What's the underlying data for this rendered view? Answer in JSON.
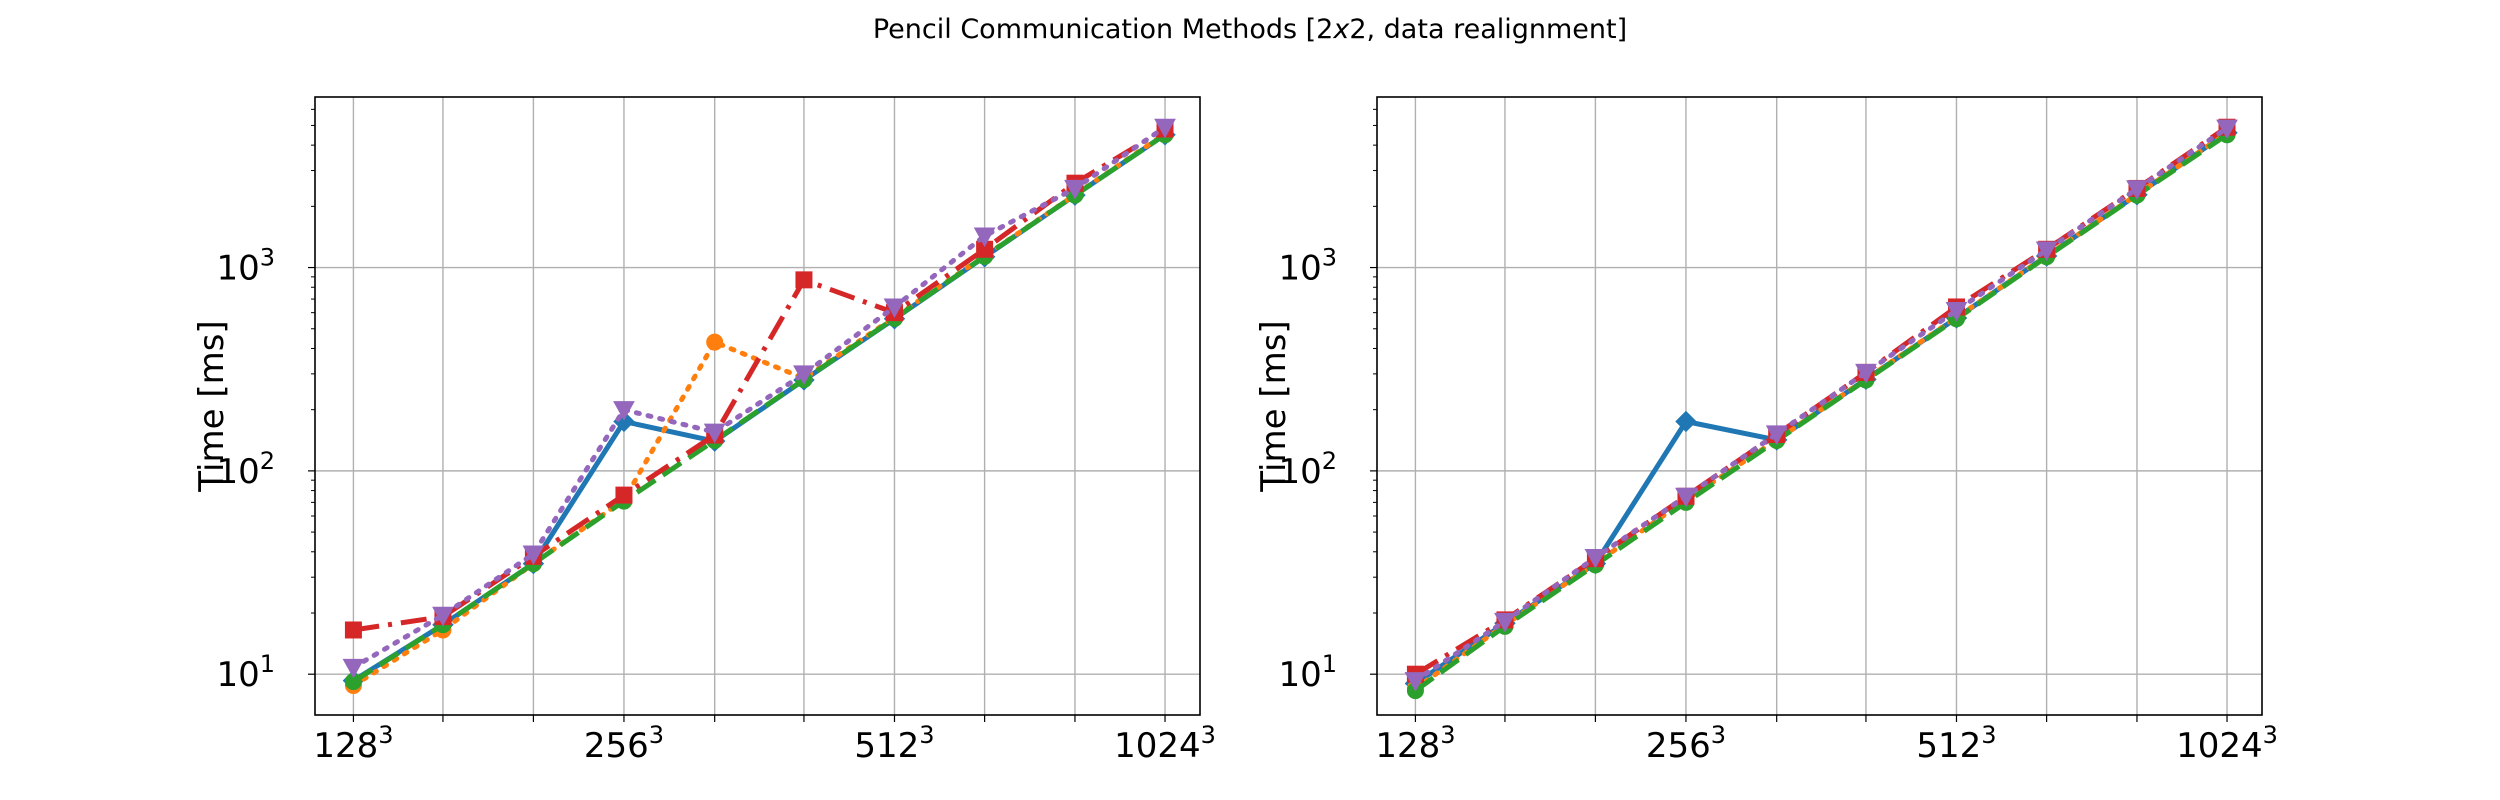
{
  "chart_data": {
    "suptitle": "Pencil Communication Methods [2x2, data realignment]",
    "suptitle_parts": {
      "before": "Pencil Communication Methods [2",
      "italic": "x",
      "after": "2, data realignment]"
    },
    "charts": [
      {
        "type": "line",
        "position": "left",
        "ylabel": "Time [ms]",
        "xlabel": "",
        "xscale": "log2",
        "yscale": "log10",
        "grid": true,
        "xlim": [
          116,
          1120
        ],
        "ylim": [
          6.3,
          6900
        ],
        "x": [
          128,
          161,
          203,
          256,
          323,
          406,
          512,
          645,
          813,
          1024
        ],
        "xticks": [
          {
            "base": "128",
            "exp": "3",
            "value": 128
          },
          {
            "base": "256",
            "exp": "3",
            "value": 256
          },
          {
            "base": "512",
            "exp": "3",
            "value": 512
          },
          {
            "base": "1024",
            "exp": "3",
            "value": 1024
          }
        ],
        "yticks": [
          {
            "base": "10",
            "exp": "1",
            "value": 10
          },
          {
            "base": "10",
            "exp": "2",
            "value": 100
          },
          {
            "base": "10",
            "exp": "3",
            "value": 1000
          }
        ],
        "series": [
          {
            "color": "#1f77b4",
            "linestyle": "solid",
            "marker": "D",
            "values": [
              9.3,
              17.5,
              35,
              175,
              140,
              280,
              560,
              1130,
              2270,
              4500
            ]
          },
          {
            "color": "#ff7f0e",
            "linestyle": "dotted",
            "marker": "o",
            "values": [
              8.8,
              16.5,
              35,
              72,
              430,
              285,
              570,
              1140,
              2280,
              4550
            ]
          },
          {
            "color": "#2ca02c",
            "linestyle": "dashed",
            "marker": "o",
            "values": [
              9.2,
              17.5,
              35,
              71,
              141,
              281,
              562,
              1135,
              2270,
              4500
            ]
          },
          {
            "color": "#d62728",
            "linestyle": "dashdot",
            "marker": "s",
            "values": [
              16.5,
              19.2,
              38,
              76,
              150,
              870,
              600,
              1230,
              2600,
              4800
            ]
          },
          {
            "color": "#9467bd",
            "linestyle": "dotted",
            "marker": "v",
            "values": [
              10.8,
              19.5,
              39,
              200,
              155,
              300,
              640,
              1430,
              2450,
              4900
            ]
          }
        ]
      },
      {
        "type": "line",
        "position": "right",
        "ylabel": "Time [ms]",
        "xlabel": "",
        "xscale": "log2",
        "yscale": "log10",
        "grid": true,
        "xlim": [
          116,
          1120
        ],
        "ylim": [
          6.3,
          6900
        ],
        "x": [
          128,
          161,
          203,
          256,
          323,
          406,
          512,
          645,
          813,
          1024
        ],
        "xticks": [
          {
            "base": "128",
            "exp": "3",
            "value": 128
          },
          {
            "base": "256",
            "exp": "3",
            "value": 256
          },
          {
            "base": "512",
            "exp": "3",
            "value": 512
          },
          {
            "base": "1024",
            "exp": "3",
            "value": 1024
          }
        ],
        "yticks": [
          {
            "base": "10",
            "exp": "1",
            "value": 10
          },
          {
            "base": "10",
            "exp": "2",
            "value": 100
          },
          {
            "base": "10",
            "exp": "3",
            "value": 1000
          }
        ],
        "series": [
          {
            "color": "#1f77b4",
            "linestyle": "solid",
            "marker": "D",
            "values": [
              9.0,
              17.8,
              35,
              175,
              142,
              282,
              565,
              1140,
              2280,
              4600
            ]
          },
          {
            "color": "#ff7f0e",
            "linestyle": "dotted",
            "marker": "o",
            "values": [
              8.5,
              17.5,
              35,
              72,
              142,
              283,
              568,
              1142,
              2285,
              4580
            ]
          },
          {
            "color": "#2ca02c",
            "linestyle": "dashed",
            "marker": "o",
            "values": [
              8.3,
              17.2,
              34.5,
              70,
              141,
              280,
              560,
              1130,
              2270,
              4500
            ]
          },
          {
            "color": "#d62728",
            "linestyle": "dashdot",
            "marker": "s",
            "values": [
              10.0,
              18.5,
              37,
              75,
              151,
              305,
              640,
              1230,
              2450,
              4900
            ]
          },
          {
            "color": "#9467bd",
            "linestyle": "dotted",
            "marker": "v",
            "values": [
              9.3,
              18.2,
              37.5,
              75,
              152,
              305,
              615,
              1220,
              2440,
              4850
            ]
          }
        ]
      }
    ]
  }
}
